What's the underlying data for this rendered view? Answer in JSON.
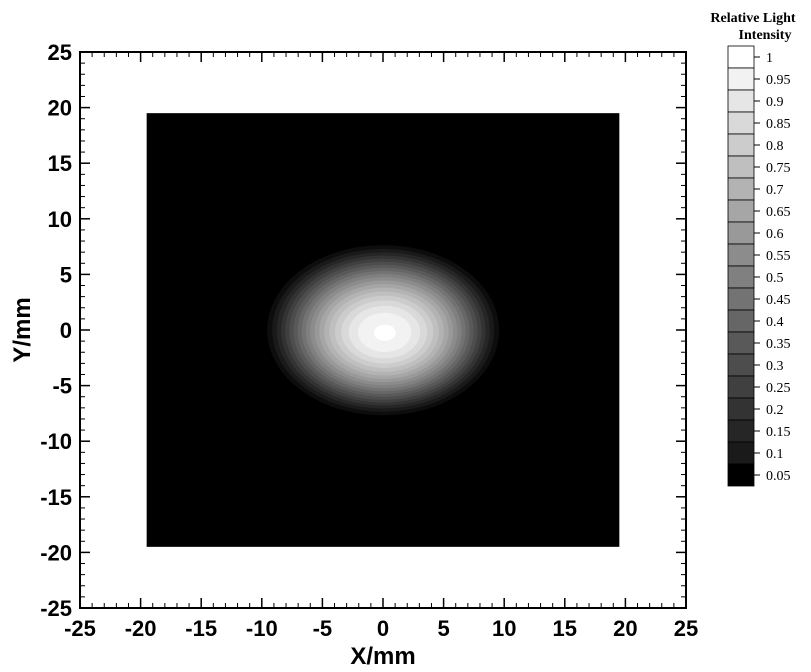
{
  "chart_data": {
    "type": "heatmap",
    "xlabel": "X/mm",
    "ylabel": "Y/mm",
    "xlim": [
      -25,
      25
    ],
    "ylim": [
      -25,
      25
    ],
    "x_ticks": [
      -25,
      -20,
      -15,
      -10,
      -5,
      0,
      5,
      10,
      15,
      20,
      25
    ],
    "y_ticks": [
      -25,
      -20,
      -15,
      -10,
      -5,
      0,
      5,
      10,
      15,
      20,
      25
    ],
    "grid": false,
    "colormap": "grayscale",
    "field_region": {
      "x": [
        -19.5,
        19.5
      ],
      "y": [
        -19.5,
        19.5
      ],
      "background_intensity": 0.0
    },
    "spot": {
      "center_x": 0,
      "center_y": 0,
      "peak_intensity": 1.0,
      "edge_radius_x": 10,
      "edge_radius_y": 8
    },
    "colorbar": {
      "title": "Relative Light Intensity",
      "title_lines": [
        "Relative Light",
        "Intensity"
      ],
      "placement": "right",
      "levels": [
        1,
        0.95,
        0.9,
        0.85,
        0.8,
        0.75,
        0.7,
        0.65,
        0.6,
        0.55,
        0.5,
        0.45,
        0.4,
        0.35,
        0.3,
        0.25,
        0.2,
        0.15,
        0.1,
        0.05
      ],
      "labels": [
        "1",
        "0.95",
        "0.9",
        "0.85",
        "0.8",
        "0.75",
        "0.7",
        "0.65",
        "0.6",
        "0.55",
        "0.5",
        "0.45",
        "0.4",
        "0.35",
        "0.3",
        "0.25",
        "0.2",
        "0.15",
        "0.1",
        "0.05"
      ]
    }
  }
}
